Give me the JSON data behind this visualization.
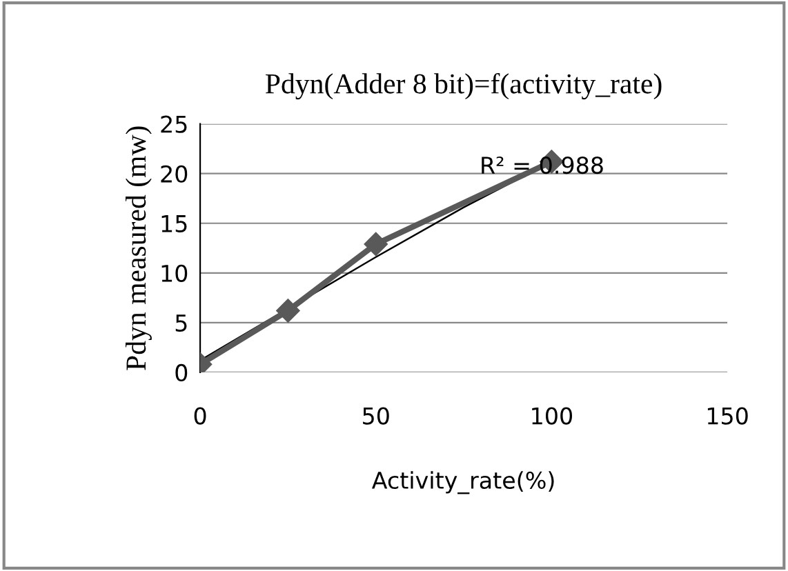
{
  "chart_data": {
    "type": "line",
    "title": "Pdyn(Adder 8 bit)=f(activity_rate)",
    "xlabel": "Activity_rate(%)",
    "ylabel": "Pdyn measured (mw)",
    "x": [
      0,
      25,
      50,
      100
    ],
    "series": [
      {
        "color": "#595959",
        "values": [
          0.8,
          6.2,
          12.9,
          21.2
        ],
        "marker": "diamond"
      },
      {
        "type": "line",
        "color": "#000000",
        "x": [
          0,
          25,
          50,
          75,
          100
        ],
        "values": [
          1.2,
          6.4,
          11.6,
          16.6,
          21.2
        ],
        "marker": "none"
      }
    ],
    "annotations": [
      "R² = 0.988"
    ],
    "xlim": [
      0,
      150
    ],
    "xticks": [
      0,
      50,
      100,
      150
    ],
    "ylim": [
      0,
      25
    ],
    "yticks": [
      0,
      5,
      10,
      15,
      20,
      25
    ],
    "grid": "y"
  }
}
